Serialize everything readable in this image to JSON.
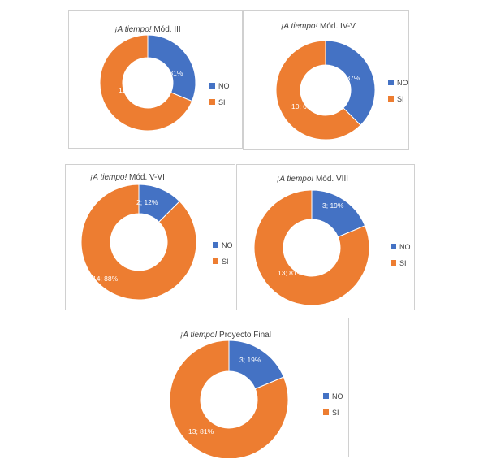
{
  "colors": {
    "no": "#4472C4",
    "si": "#ED7D31"
  },
  "chart_data": [
    {
      "type": "pie",
      "title_italic": "¡A tiempo!",
      "title_rest": " Mód. III",
      "legend_position": "right",
      "categories": [
        "NO",
        "SI"
      ],
      "values": [
        5,
        11
      ],
      "data_labels": [
        "5; 31%",
        "11; 69%"
      ]
    },
    {
      "type": "pie",
      "title_italic": "¡A tiempo!",
      "title_rest": " Mód. IV-V",
      "legend_position": "right",
      "categories": [
        "NO",
        "SI"
      ],
      "values": [
        6,
        10
      ],
      "data_labels": [
        "6; 37%",
        "10; 63%"
      ]
    },
    {
      "type": "pie",
      "title_italic": "¡A tiempo!",
      "title_rest": " Mód. V-VI",
      "legend_position": "right",
      "categories": [
        "NO",
        "SI"
      ],
      "values": [
        2,
        14
      ],
      "data_labels": [
        "2; 12%",
        "14; 88%"
      ]
    },
    {
      "type": "pie",
      "title_italic": "¡A tiempo!",
      "title_rest": " Mód. VIII",
      "legend_position": "right",
      "categories": [
        "NO",
        "SI"
      ],
      "values": [
        3,
        13
      ],
      "data_labels": [
        "3; 19%",
        "13; 81%"
      ]
    },
    {
      "type": "pie",
      "title_italic": "¡A tiempo!",
      "title_rest": " Proyecto Final",
      "legend_position": "right",
      "categories": [
        "NO",
        "SI"
      ],
      "values": [
        3,
        13
      ],
      "data_labels": [
        "3; 19%",
        "13; 81%"
      ]
    }
  ]
}
